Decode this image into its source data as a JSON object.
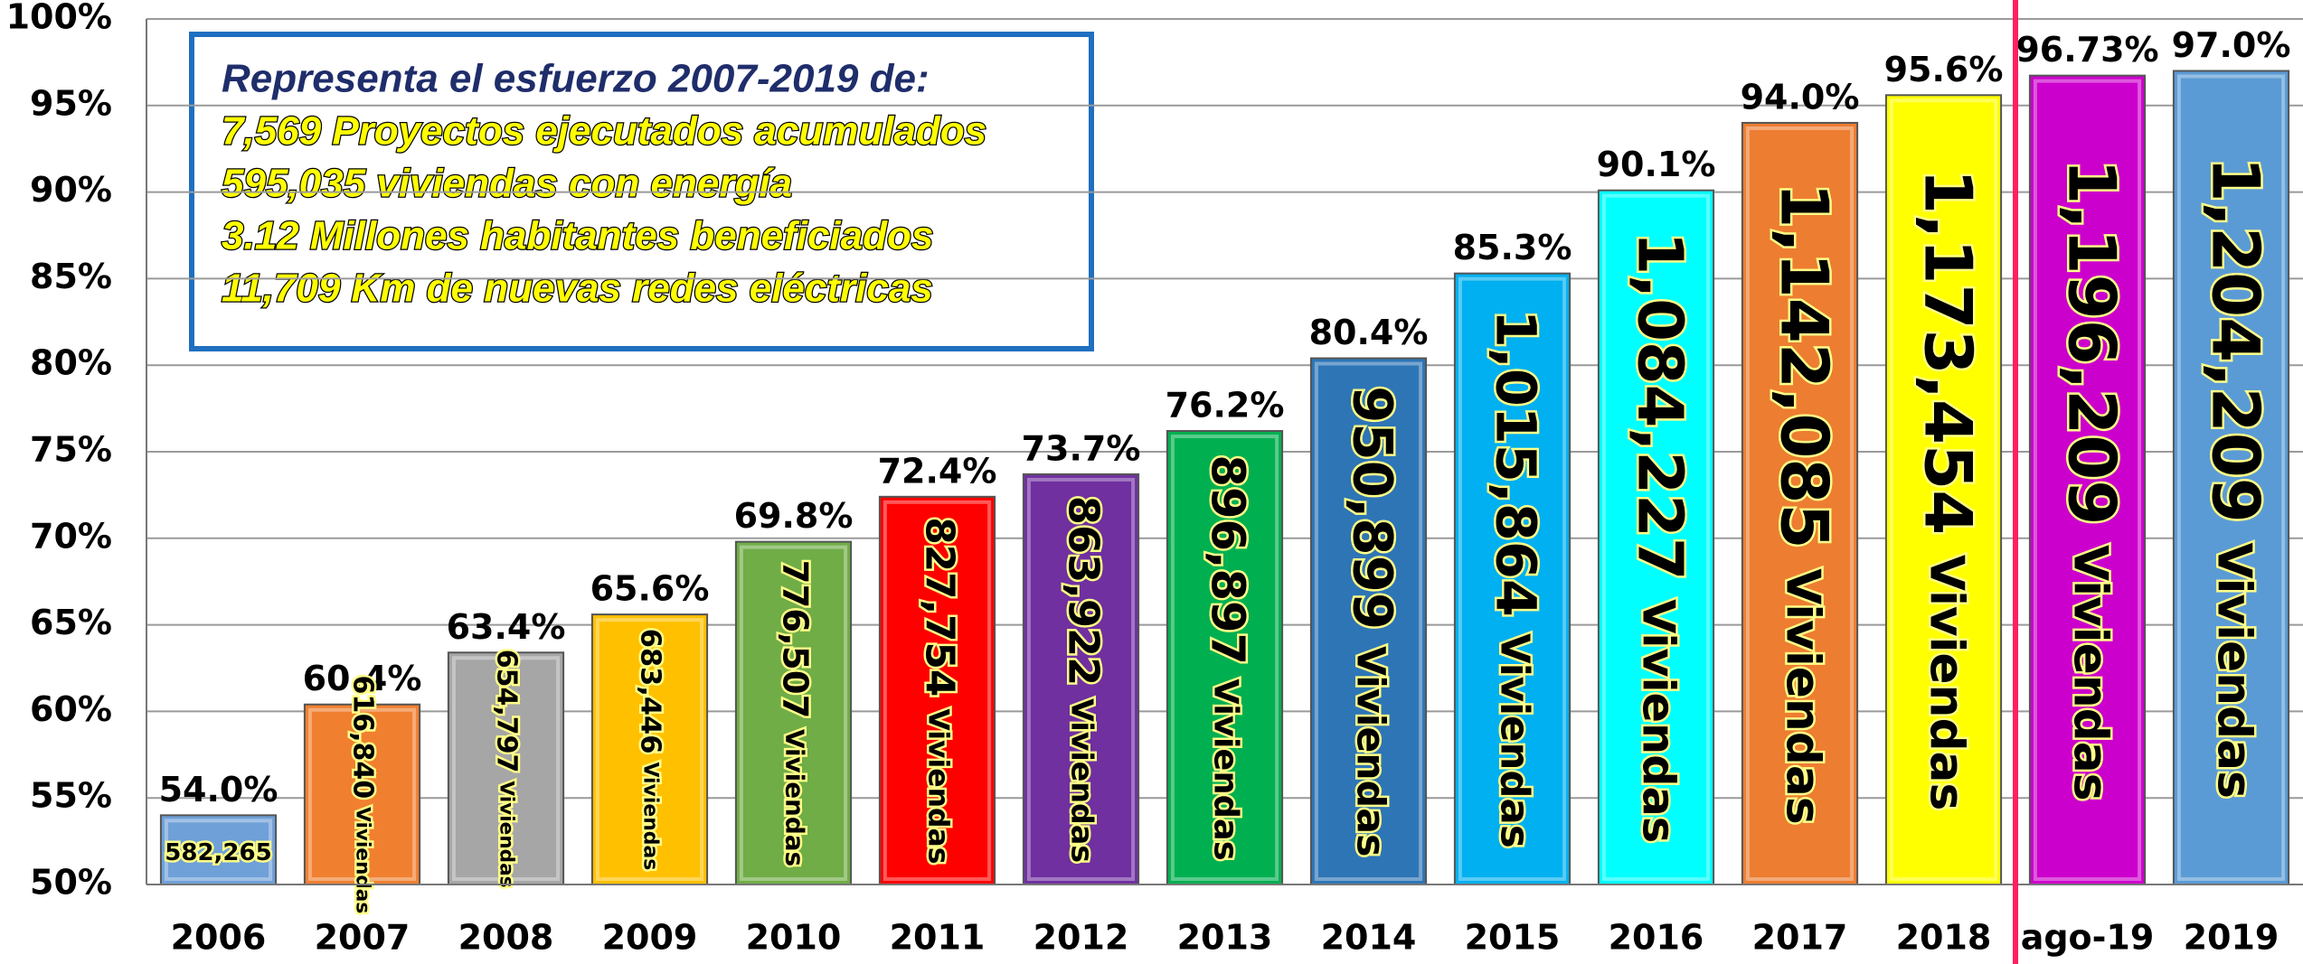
{
  "chart_data": {
    "type": "bar",
    "categories": [
      "2006",
      "2007",
      "2008",
      "2009",
      "2010",
      "2011",
      "2012",
      "2013",
      "2014",
      "2015",
      "2016",
      "2017",
      "2018",
      "ago-19",
      "2019"
    ],
    "values": [
      54.0,
      60.4,
      63.4,
      65.6,
      69.8,
      72.4,
      73.7,
      76.2,
      80.4,
      85.3,
      90.1,
      94.0,
      95.6,
      96.73,
      97.0
    ],
    "value_labels": [
      "54.0%",
      "60.4%",
      "63.4%",
      "65.6%",
      "69.8%",
      "72.4%",
      "73.7%",
      "76.2%",
      "80.4%",
      "85.3%",
      "90.1%",
      "94.0%",
      "95.6%",
      "96.73%",
      "97.0%"
    ],
    "inner_labels": [
      "582,265",
      "616,840",
      "654,797",
      "683,446",
      "776,507",
      "827,754",
      "863,922",
      "896,897",
      "950,899",
      "1,015,864",
      "1,084,227",
      "1,142,085",
      "1,173,454",
      "1,196,209",
      "1,204,209"
    ],
    "inner_units": [
      null,
      "Viviendas",
      "Viviendas",
      "Viviendas",
      "Viviendas",
      "Viviendas",
      "Viviendas",
      "Viviendas",
      "Viviendas",
      "Viviendas",
      "Viviendas",
      "Viviendas",
      "Viviendas",
      "Viviendas",
      "Viviendas"
    ],
    "colors": [
      "#6fa0d8",
      "#f08030",
      "#a6a6a6",
      "#ffc000",
      "#70ad47",
      "#ff0000",
      "#7030a0",
      "#00b050",
      "#2e75b6",
      "#00b0f0",
      "#00ffff",
      "#ed7d31",
      "#ffff00",
      "#cc00cc",
      "#5b9bd5"
    ],
    "ylim": [
      50,
      100
    ],
    "yticks": [
      {
        "value": 50,
        "label": "50%"
      },
      {
        "value": 55,
        "label": "55%"
      },
      {
        "value": 60,
        "label": "60%"
      },
      {
        "value": 65,
        "label": "65%"
      },
      {
        "value": 70,
        "label": "70%"
      },
      {
        "value": 75,
        "label": "75%"
      },
      {
        "value": 80,
        "label": "80%"
      },
      {
        "value": 85,
        "label": "85%"
      },
      {
        "value": 90,
        "label": "90%"
      },
      {
        "value": 95,
        "label": "95%"
      },
      {
        "value": 100,
        "label": "100%"
      }
    ],
    "grid": true,
    "annotation": {
      "title": "Representa el esfuerzo 2007-2019 de:",
      "lines": [
        "7,569 Proyectos ejecutados acumulados",
        "595,035 viviendas con energía",
        "3.12 Millones habitantes beneficiados",
        "11,709  Km de nuevas redes eléctricas"
      ]
    }
  }
}
